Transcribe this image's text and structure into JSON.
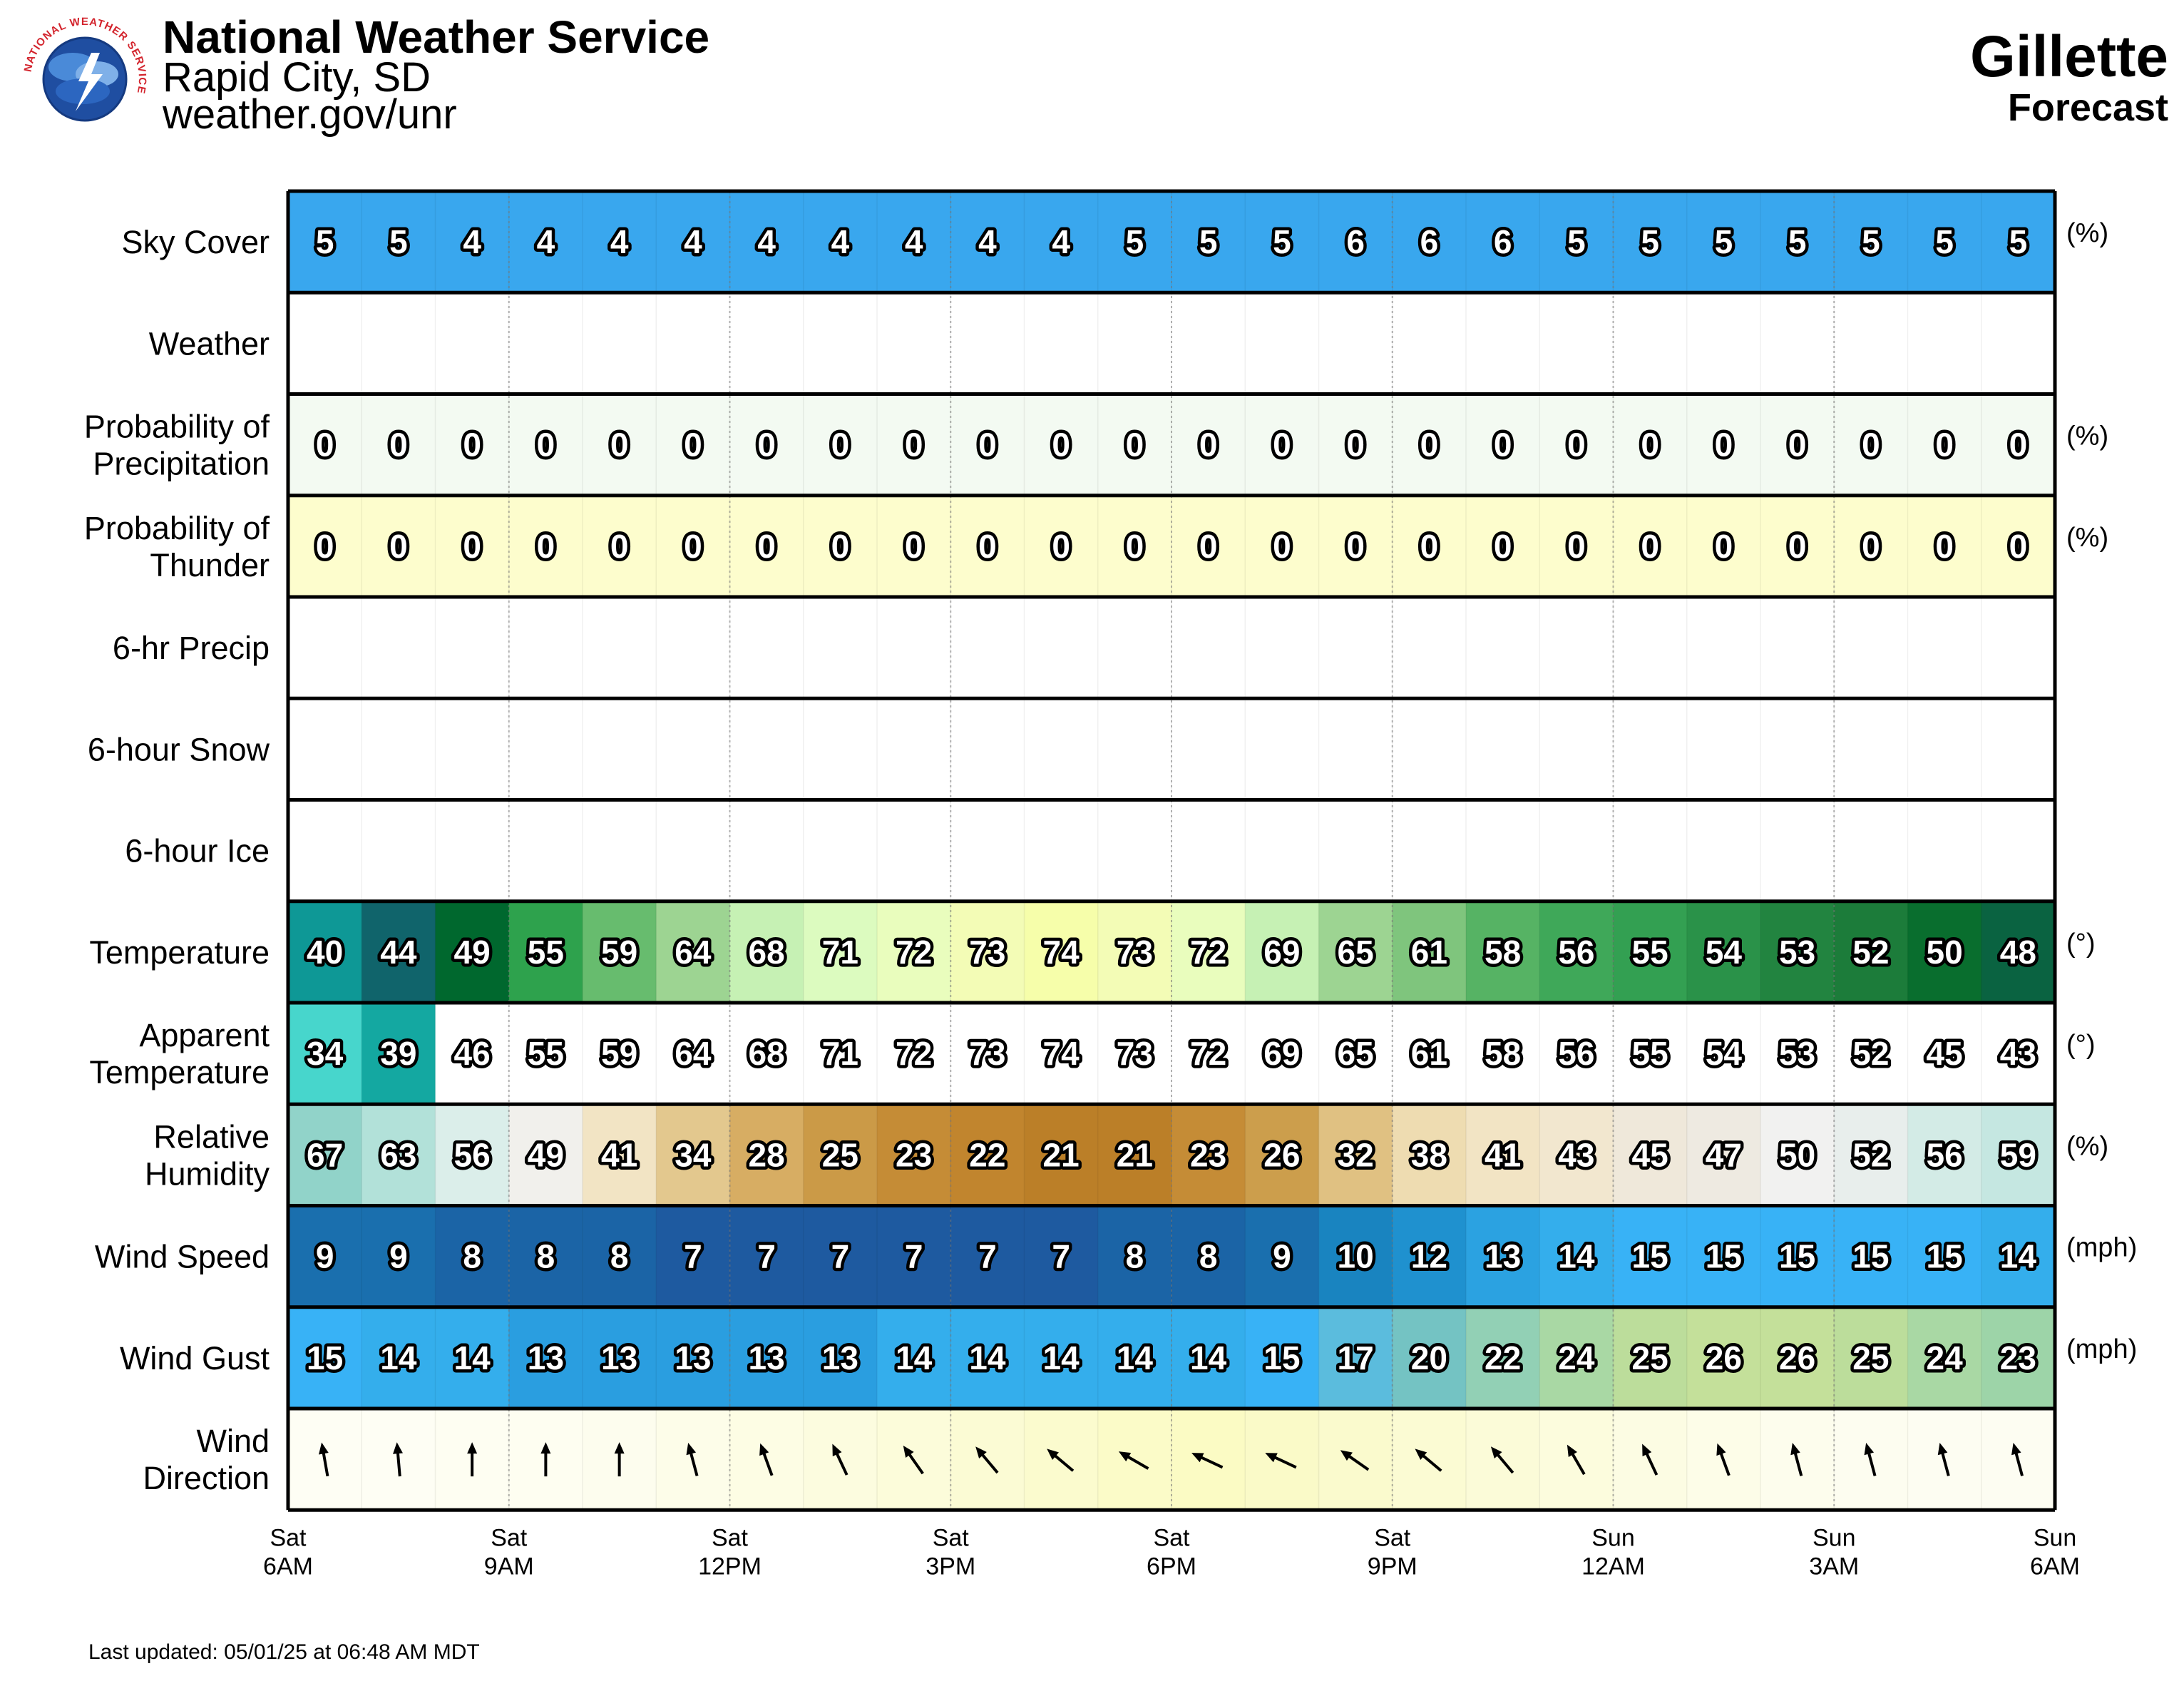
{
  "header": {
    "org": "National Weather Service",
    "office": "Rapid City, SD",
    "site": "weather.gov/unr",
    "location": "Gillette",
    "subtitle": "Forecast",
    "logo_text": "NATIONAL WEATHER SERVICE"
  },
  "last_updated": "Last updated: 05/01/25 at 06:48 AM MDT",
  "chart_data": {
    "type": "table",
    "time_labels": [
      {
        "day": "Sat",
        "time": "6AM"
      },
      {
        "day": "Sat",
        "time": "9AM"
      },
      {
        "day": "Sat",
        "time": "12PM"
      },
      {
        "day": "Sat",
        "time": "3PM"
      },
      {
        "day": "Sat",
        "time": "6PM"
      },
      {
        "day": "Sat",
        "time": "9PM"
      },
      {
        "day": "Sun",
        "time": "12AM"
      },
      {
        "day": "Sun",
        "time": "3AM"
      },
      {
        "day": "Sun",
        "time": "6AM"
      }
    ],
    "rows": [
      {
        "label": [
          "Sky Cover"
        ],
        "unit": "(%)",
        "values": [
          5,
          5,
          4,
          4,
          4,
          4,
          4,
          4,
          4,
          4,
          4,
          5,
          5,
          5,
          6,
          6,
          6,
          5,
          5,
          5,
          5,
          5,
          5,
          5
        ],
        "colors": [
          "#39a7ee"
        ]
      },
      {
        "label": [
          "Weather"
        ],
        "unit": "",
        "values": [],
        "colors": [
          "#ffffff"
        ]
      },
      {
        "label": [
          "Probability of",
          "Precipitation"
        ],
        "unit": "(%)",
        "values": [
          0,
          0,
          0,
          0,
          0,
          0,
          0,
          0,
          0,
          0,
          0,
          0,
          0,
          0,
          0,
          0,
          0,
          0,
          0,
          0,
          0,
          0,
          0,
          0
        ],
        "colors": [
          "#f3faf2"
        ]
      },
      {
        "label": [
          "Probability of",
          "Thunder"
        ],
        "unit": "(%)",
        "values": [
          0,
          0,
          0,
          0,
          0,
          0,
          0,
          0,
          0,
          0,
          0,
          0,
          0,
          0,
          0,
          0,
          0,
          0,
          0,
          0,
          0,
          0,
          0,
          0
        ],
        "colors": [
          "#fdfdcd"
        ]
      },
      {
        "label": [
          "6-hr Precip"
        ],
        "unit": "",
        "values": [],
        "colors": [
          "#ffffff"
        ]
      },
      {
        "label": [
          "6-hour Snow"
        ],
        "unit": "",
        "values": [],
        "colors": [
          "#ffffff"
        ]
      },
      {
        "label": [
          "6-hour Ice"
        ],
        "unit": "",
        "values": [],
        "colors": [
          "#ffffff"
        ]
      },
      {
        "label": [
          "Temperature"
        ],
        "unit": "(°)",
        "values": [
          40,
          44,
          49,
          55,
          59,
          64,
          68,
          71,
          72,
          73,
          74,
          73,
          72,
          69,
          65,
          61,
          58,
          56,
          55,
          54,
          53,
          52,
          50,
          48
        ],
        "colors": [
          "#0e9896",
          "#10646b",
          "#00682e",
          "#2ea24d",
          "#67bc6e",
          "#9dd492",
          "#c6f1b4",
          "#dcfbbf",
          "#e9fdbd",
          "#f3fcb6",
          "#f6feaa",
          "#f3fcb6",
          "#e9fdbd",
          "#c6f1b4",
          "#9dd492",
          "#7fc57d",
          "#56b364",
          "#3fa859",
          "#33a052",
          "#2a9249",
          "#228440",
          "#1c7c3a",
          "#096e2e",
          "#0a6341"
        ]
      },
      {
        "label": [
          "Apparent",
          "Temperature"
        ],
        "unit": "(°)",
        "values": [
          34,
          39,
          46,
          55,
          59,
          64,
          68,
          71,
          72,
          73,
          74,
          73,
          72,
          69,
          65,
          61,
          58,
          56,
          55,
          54,
          53,
          52,
          45,
          43
        ],
        "colors": [
          "#47d6cc",
          "#14a8a1",
          "#ffffff",
          "#ffffff",
          "#ffffff",
          "#ffffff",
          "#ffffff",
          "#ffffff",
          "#ffffff",
          "#ffffff",
          "#ffffff",
          "#ffffff",
          "#ffffff",
          "#ffffff",
          "#ffffff",
          "#ffffff",
          "#ffffff",
          "#ffffff",
          "#ffffff",
          "#ffffff",
          "#ffffff",
          "#ffffff",
          "#ffffff",
          "#ffffff"
        ]
      },
      {
        "label": [
          "Relative",
          "Humidity"
        ],
        "unit": "(%)",
        "values": [
          67,
          63,
          56,
          49,
          41,
          34,
          28,
          25,
          23,
          22,
          21,
          21,
          23,
          26,
          32,
          38,
          41,
          43,
          45,
          47,
          50,
          52,
          56,
          59
        ],
        "colors": [
          "#91d3c9",
          "#b2e1d9",
          "#dbeeea",
          "#f1f0ec",
          "#f2e4c4",
          "#e3c88e",
          "#d7ad63",
          "#cb9a47",
          "#c58c36",
          "#c1852e",
          "#bb7f28",
          "#bb7f28",
          "#c58c36",
          "#cc9e4c",
          "#e0c182",
          "#eedcb1",
          "#f2e4c4",
          "#f2e7cf",
          "#efe8da",
          "#eeeae1",
          "#f1f1f0",
          "#e8eeec",
          "#d3ebe6",
          "#c5e7e1"
        ]
      },
      {
        "label": [
          "Wind Speed"
        ],
        "unit": "(mph)",
        "values": [
          9,
          9,
          8,
          8,
          8,
          7,
          7,
          7,
          7,
          7,
          7,
          8,
          8,
          9,
          10,
          12,
          13,
          14,
          15,
          15,
          15,
          15,
          15,
          14
        ],
        "colors": [
          "#1a6fae",
          "#1a6fae",
          "#1b64a6",
          "#1b64a6",
          "#1b64a6",
          "#1e5aa0",
          "#1e5aa0",
          "#1e5aa0",
          "#1e5aa0",
          "#1e5aa0",
          "#1e5aa0",
          "#1b64a6",
          "#1b64a6",
          "#1a6fae",
          "#1984c0",
          "#1f91cf",
          "#2ba2e1",
          "#34aeec",
          "#38b2f6",
          "#38b2f6",
          "#38b2f6",
          "#38b2f6",
          "#38b2f6",
          "#34aeec"
        ]
      },
      {
        "label": [
          "Wind Gust"
        ],
        "unit": "(mph)",
        "values": [
          15,
          14,
          14,
          13,
          13,
          13,
          13,
          13,
          14,
          14,
          14,
          14,
          14,
          15,
          17,
          20,
          22,
          24,
          25,
          26,
          26,
          25,
          24,
          23
        ],
        "colors": [
          "#38b2f6",
          "#34aeec",
          "#34aeec",
          "#2a9ee0",
          "#2a9ee0",
          "#2a9ee0",
          "#2a9ee0",
          "#2a9ee0",
          "#34aeec",
          "#34aeec",
          "#34aeec",
          "#34aeec",
          "#34aeec",
          "#38b2f6",
          "#5bbcdd",
          "#74c3c3",
          "#92d0b5",
          "#a9d8a4",
          "#bcdd9b",
          "#c4e09a",
          "#c4e09a",
          "#bcdd9b",
          "#a9d8a4",
          "#9dd4a8"
        ]
      },
      {
        "label": [
          "Wind",
          "Direction"
        ],
        "unit": "",
        "values": [
          350,
          355,
          0,
          0,
          0,
          345,
          340,
          335,
          325,
          320,
          310,
          300,
          295,
          295,
          305,
          310,
          320,
          330,
          335,
          340,
          345,
          345,
          345,
          345
        ],
        "colors": [
          "#fefef4",
          "#fefef4",
          "#fefef2",
          "#fefef1",
          "#fdfdee",
          "#fdfde9",
          "#fdfde4",
          "#fcfcdf",
          "#fcfcda",
          "#fbfbd4",
          "#fbfbce",
          "#fbfbc8",
          "#fbfbc4",
          "#fafac8",
          "#fafacd",
          "#fbfbd3",
          "#fbfbd8",
          "#fcfcdd",
          "#fcfce3",
          "#fdfde8",
          "#fdfded",
          "#fdfdf0",
          "#fdfdf2",
          "#fdfdf2"
        ]
      }
    ]
  }
}
